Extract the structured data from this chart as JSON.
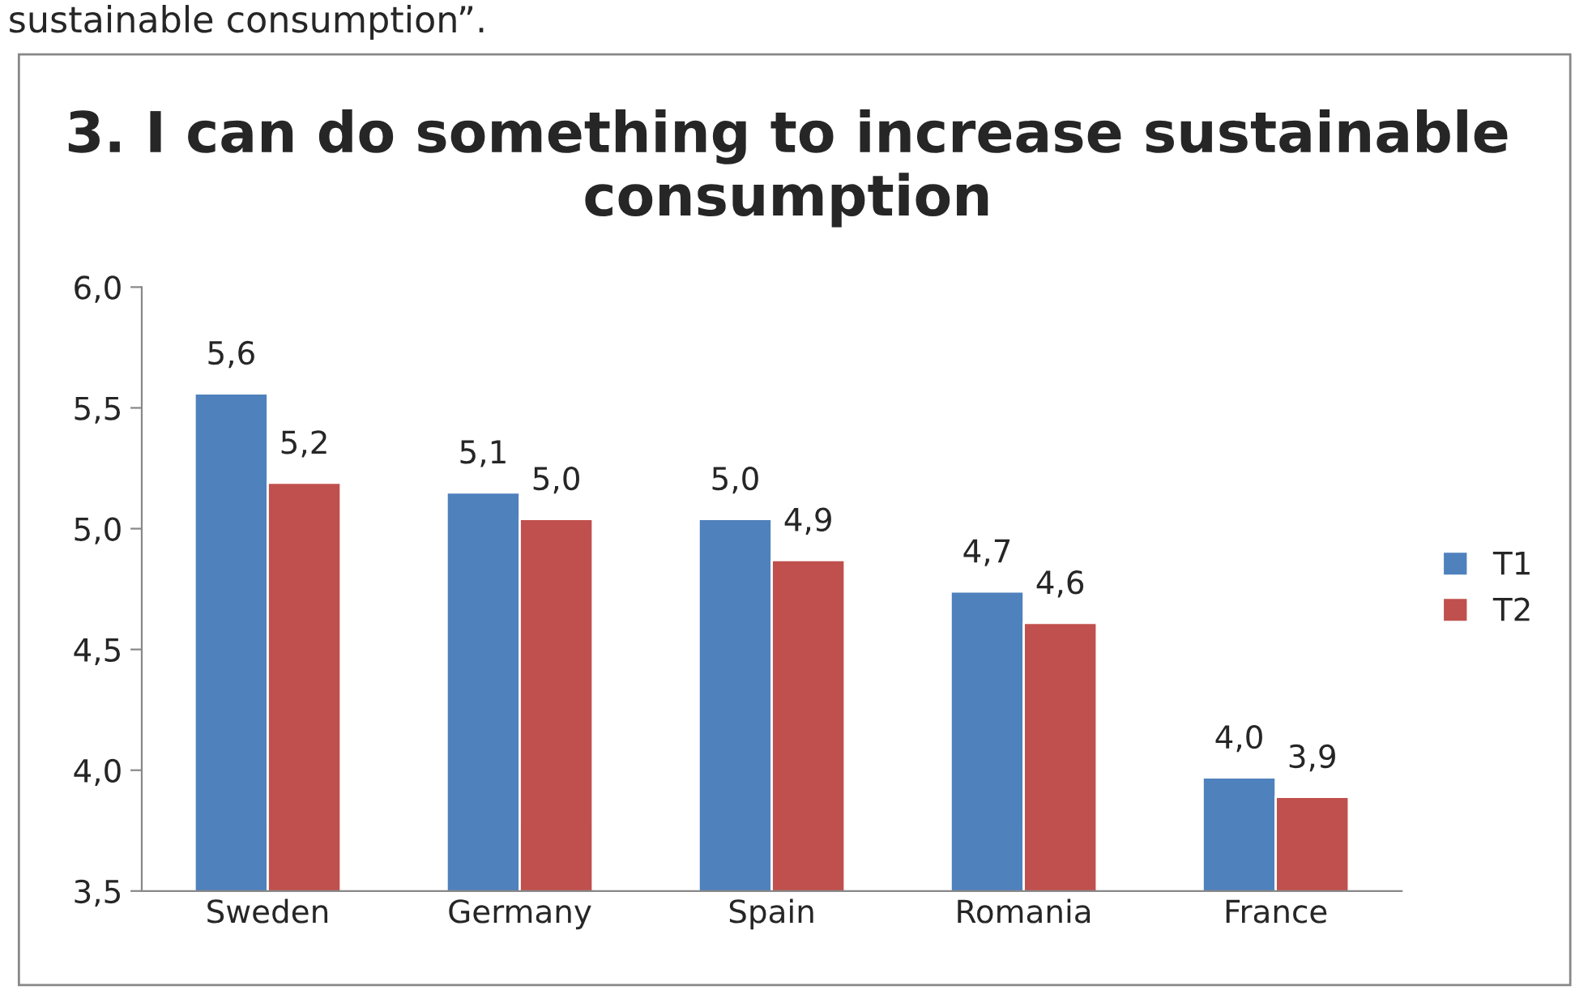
{
  "chart_data": {
    "type": "bar",
    "title": "3. I can do something to increase sustainable consumption",
    "annotations": [
      "sustainable consumption”."
    ],
    "categories": [
      "Sweden",
      "Germany",
      "Spain",
      "Romania",
      "France"
    ],
    "series": [
      {
        "name": "T1",
        "color": "#4f81bd",
        "values": [
          5.56,
          5.15,
          5.04,
          4.74,
          3.97
        ],
        "value_labels": [
          "5,6",
          "5,1",
          "5,0",
          "4,7",
          "4,0"
        ]
      },
      {
        "name": "T2",
        "color": "#c0504d",
        "values": [
          5.19,
          5.04,
          4.87,
          4.61,
          3.89
        ],
        "value_labels": [
          "5,2",
          "5,0",
          "4,9",
          "4,6",
          "3,9"
        ]
      }
    ],
    "ylim": [
      3.5,
      6.0
    ],
    "yticks": [
      {
        "value": 3.5,
        "label": "3,5"
      },
      {
        "value": 4.0,
        "label": "4,0"
      },
      {
        "value": 4.5,
        "label": "4,5"
      },
      {
        "value": 5.0,
        "label": "5,0"
      },
      {
        "value": 5.5,
        "label": "5,5"
      },
      {
        "value": 6.0,
        "label": "6,0"
      }
    ],
    "grid": false,
    "legend": "right"
  }
}
